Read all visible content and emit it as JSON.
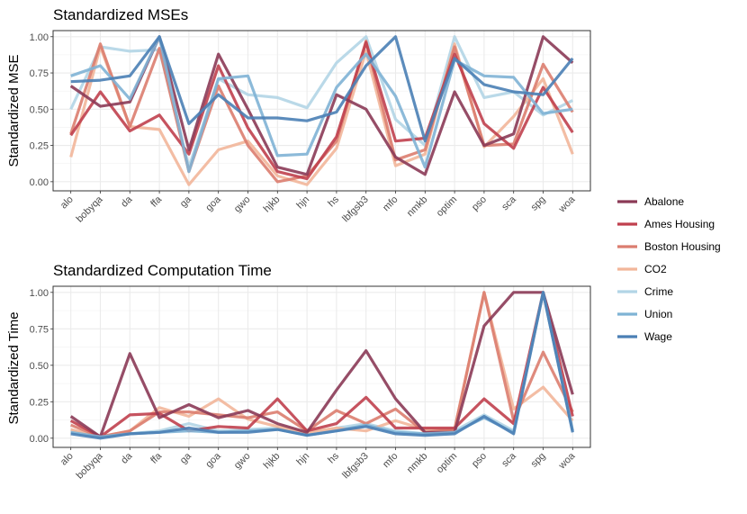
{
  "legend": {
    "items": [
      {
        "name": "Abalone",
        "color": "#8B3A56"
      },
      {
        "name": "Ames Housing",
        "color": "#C0404E"
      },
      {
        "name": "Boston Housing",
        "color": "#DB7D6F"
      },
      {
        "name": "CO2",
        "color": "#F2B69A"
      },
      {
        "name": "Crime",
        "color": "#B2D5E6"
      },
      {
        "name": "Union",
        "color": "#7FB3D5"
      },
      {
        "name": "Wage",
        "color": "#4A7FB5"
      }
    ]
  },
  "chart_data": [
    {
      "type": "line",
      "title": "Standardized MSEs",
      "xlabel": "",
      "ylabel": "Standardized MSE",
      "ylim": [
        0,
        1
      ],
      "yticks": [
        "0.00",
        "0.25",
        "0.50",
        "0.75",
        "1.00"
      ],
      "categories": [
        "alo",
        "bobyqa",
        "da",
        "ffa",
        "ga",
        "goa",
        "gwo",
        "hjkb",
        "hjn",
        "hs",
        "lbfgsb3",
        "mfo",
        "nmkb",
        "optim",
        "pso",
        "sca",
        "spg",
        "woa"
      ],
      "series": [
        {
          "name": "Crime",
          "values": [
            0.5,
            0.93,
            0.9,
            0.91,
            0.1,
            0.71,
            0.6,
            0.58,
            0.51,
            0.82,
            1.0,
            0.43,
            0.25,
            1.0,
            0.58,
            0.62,
            0.46,
            0.56
          ]
        },
        {
          "name": "CO2",
          "values": [
            0.17,
            0.93,
            0.38,
            0.36,
            -0.02,
            0.22,
            0.28,
            0.04,
            -0.02,
            0.23,
            0.9,
            0.11,
            0.19,
            0.95,
            0.24,
            0.45,
            0.71,
            0.19
          ]
        },
        {
          "name": "Boston Housing",
          "values": [
            0.33,
            0.95,
            0.38,
            0.92,
            0.07,
            0.66,
            0.25,
            0.0,
            0.04,
            0.28,
            0.97,
            0.15,
            0.22,
            0.93,
            0.25,
            0.26,
            0.81,
            0.48
          ]
        },
        {
          "name": "Ames Housing",
          "values": [
            0.32,
            0.62,
            0.35,
            0.46,
            0.19,
            0.8,
            0.37,
            0.07,
            0.02,
            0.31,
            0.96,
            0.28,
            0.3,
            0.88,
            0.4,
            0.23,
            0.65,
            0.34
          ]
        },
        {
          "name": "Abalone",
          "values": [
            0.66,
            0.52,
            0.55,
            1.0,
            0.22,
            0.88,
            0.5,
            0.1,
            0.05,
            0.6,
            0.5,
            0.17,
            0.05,
            0.62,
            0.25,
            0.33,
            1.0,
            0.82
          ]
        },
        {
          "name": "Union",
          "values": [
            0.73,
            0.8,
            0.57,
            1.0,
            0.07,
            0.71,
            0.73,
            0.18,
            0.19,
            0.65,
            0.88,
            0.59,
            0.1,
            0.84,
            0.73,
            0.72,
            0.47,
            0.5
          ]
        },
        {
          "name": "Wage",
          "values": [
            0.69,
            0.7,
            0.73,
            1.0,
            0.4,
            0.6,
            0.44,
            0.44,
            0.42,
            0.48,
            0.8,
            1.0,
            0.28,
            0.85,
            0.67,
            0.62,
            0.6,
            0.85
          ]
        }
      ]
    },
    {
      "type": "line",
      "title": "Standardized Computation Time",
      "xlabel": "",
      "ylabel": "Standardized Time",
      "ylim": [
        0,
        1
      ],
      "yticks": [
        "0.00",
        "0.25",
        "0.50",
        "0.75",
        "1.00"
      ],
      "categories": [
        "alo",
        "bobyqa",
        "da",
        "ffa",
        "ga",
        "goa",
        "gwo",
        "hjkb",
        "hjn",
        "hs",
        "lbfgsb3",
        "mfo",
        "nmkb",
        "optim",
        "pso",
        "sca",
        "spg",
        "woa"
      ],
      "series": [
        {
          "name": "Crime",
          "values": [
            0.05,
            0.01,
            0.03,
            0.05,
            0.1,
            0.05,
            0.06,
            0.07,
            0.02,
            0.07,
            0.1,
            0.05,
            0.03,
            0.05,
            0.16,
            0.05,
            1.0,
            0.05
          ]
        },
        {
          "name": "CO2",
          "values": [
            0.06,
            0.01,
            0.05,
            0.21,
            0.15,
            0.27,
            0.13,
            0.08,
            0.04,
            0.07,
            0.05,
            0.12,
            0.06,
            0.06,
            1.0,
            0.2,
            0.35,
            0.12
          ]
        },
        {
          "name": "Boston Housing",
          "values": [
            0.09,
            0.01,
            0.05,
            0.18,
            0.18,
            0.16,
            0.14,
            0.18,
            0.05,
            0.19,
            0.1,
            0.2,
            0.04,
            0.06,
            1.0,
            0.12,
            0.59,
            0.18
          ]
        },
        {
          "name": "Ames Housing",
          "values": [
            0.12,
            0.01,
            0.16,
            0.17,
            0.05,
            0.08,
            0.07,
            0.27,
            0.05,
            0.1,
            0.28,
            0.07,
            0.07,
            0.07,
            0.27,
            0.1,
            1.0,
            0.15
          ]
        },
        {
          "name": "Abalone",
          "values": [
            0.15,
            0.01,
            0.58,
            0.14,
            0.23,
            0.14,
            0.19,
            0.1,
            0.04,
            0.33,
            0.6,
            0.27,
            0.04,
            0.04,
            0.77,
            1.0,
            1.0,
            0.3
          ]
        },
        {
          "name": "Union",
          "values": [
            0.04,
            0.01,
            0.03,
            0.04,
            0.05,
            0.04,
            0.05,
            0.06,
            0.02,
            0.05,
            0.09,
            0.04,
            0.03,
            0.04,
            0.14,
            0.04,
            1.0,
            0.05
          ]
        },
        {
          "name": "Wage",
          "values": [
            0.03,
            0.0,
            0.03,
            0.04,
            0.07,
            0.04,
            0.04,
            0.06,
            0.02,
            0.05,
            0.08,
            0.03,
            0.02,
            0.03,
            0.15,
            0.03,
            1.0,
            0.04
          ]
        }
      ]
    }
  ]
}
